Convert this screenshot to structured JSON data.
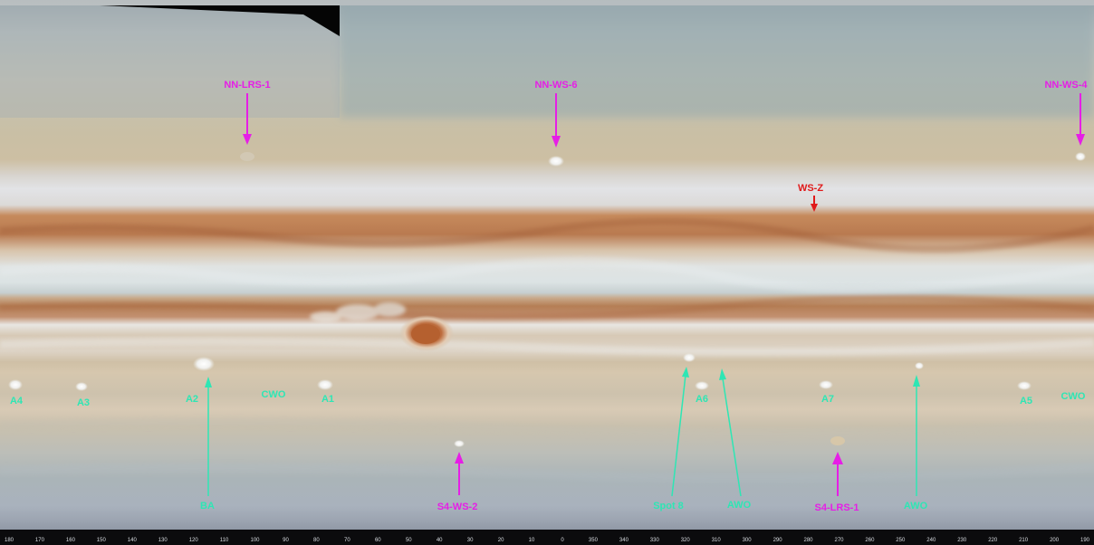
{
  "colors": {
    "magenta": "#e61ee6",
    "cyan": "#2ee6b4",
    "red": "#e01a1a"
  },
  "magenta_labels": [
    {
      "id": "nn-lrs-1",
      "text": "NN-LRS-1"
    },
    {
      "id": "nn-ws-6",
      "text": "NN-WS-6"
    },
    {
      "id": "nn-ws-4",
      "text": "NN-WS-4"
    },
    {
      "id": "s4-ws-2",
      "text": "S4-WS-2"
    },
    {
      "id": "s4-lrs-1",
      "text": "S4-LRS-1"
    }
  ],
  "red_labels": [
    {
      "id": "ws-z",
      "text": "WS-Z"
    }
  ],
  "cyan_labels": [
    {
      "id": "a4",
      "text": "A4"
    },
    {
      "id": "a3",
      "text": "A3"
    },
    {
      "id": "a2",
      "text": "A2"
    },
    {
      "id": "cwo-left",
      "text": "CWO"
    },
    {
      "id": "a1",
      "text": "A1"
    },
    {
      "id": "a6",
      "text": "A6"
    },
    {
      "id": "a7",
      "text": "A7"
    },
    {
      "id": "a5",
      "text": "A5"
    },
    {
      "id": "cwo-right",
      "text": "CWO"
    },
    {
      "id": "ba",
      "text": "BA"
    },
    {
      "id": "spot-8",
      "text": "Spot 8"
    },
    {
      "id": "awo-1",
      "text": "AWO"
    },
    {
      "id": "awo-2",
      "text": "AWO"
    }
  ],
  "longitude_ticks": [
    "180",
    "170",
    "160",
    "150",
    "140",
    "130",
    "120",
    "110",
    "100",
    "90",
    "80",
    "70",
    "60",
    "50",
    "40",
    "30",
    "20",
    "10",
    "0",
    "350",
    "340",
    "330",
    "320",
    "310",
    "300",
    "290",
    "280",
    "270",
    "260",
    "250",
    "240",
    "230",
    "220",
    "210",
    "200",
    "190"
  ]
}
